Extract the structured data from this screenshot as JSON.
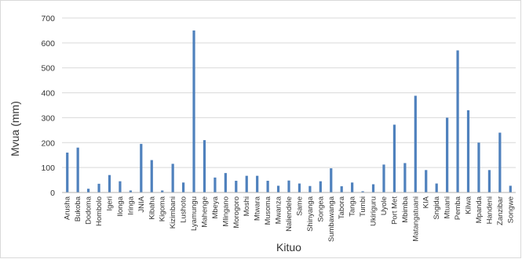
{
  "chart_data": {
    "type": "bar",
    "xlabel": "Kituo",
    "ylabel": "Mvua (mm)",
    "ylim": [
      0,
      700
    ],
    "yticks": [
      0,
      100,
      200,
      300,
      400,
      500,
      600,
      700
    ],
    "grid": true,
    "legend": "none",
    "bar_color": "#4F81BD",
    "categories": [
      "Arusha",
      "Bukoba",
      "Dodoma",
      "Hombolo",
      "Igeri",
      "Ilonga",
      "Iringa",
      "JNIA",
      "Kibaha",
      "Kigoma",
      "Kizimbani",
      "Lushoto",
      "Lyamungu",
      "Mahenge",
      "Mbeya",
      "Mlingano",
      "Morogoro",
      "Moshi",
      "Mtwara",
      "Musoma",
      "Mwanza",
      "Naliendele",
      "Same",
      "Shinyanga",
      "Songea",
      "Sumbawanga",
      "Tabora",
      "Tanga",
      "Tumbi",
      "Ukiriguru",
      "Uyole",
      "Port Met",
      "Mbimba",
      "Matangatuani",
      "KIA",
      "Sngida",
      "Mtuani",
      "Pemba",
      "Kilwa",
      "Mpanda",
      "Handeni",
      "Zanzibar",
      "Songwe"
    ],
    "values": [
      160,
      180,
      15,
      35,
      70,
      45,
      8,
      195,
      130,
      8,
      115,
      40,
      650,
      210,
      60,
      78,
      47,
      67,
      67,
      47,
      27,
      48,
      36,
      26,
      45,
      97,
      25,
      40,
      5,
      33,
      112,
      272,
      118,
      388,
      90,
      36,
      300,
      570,
      330,
      200,
      90,
      240,
      27
    ]
  }
}
